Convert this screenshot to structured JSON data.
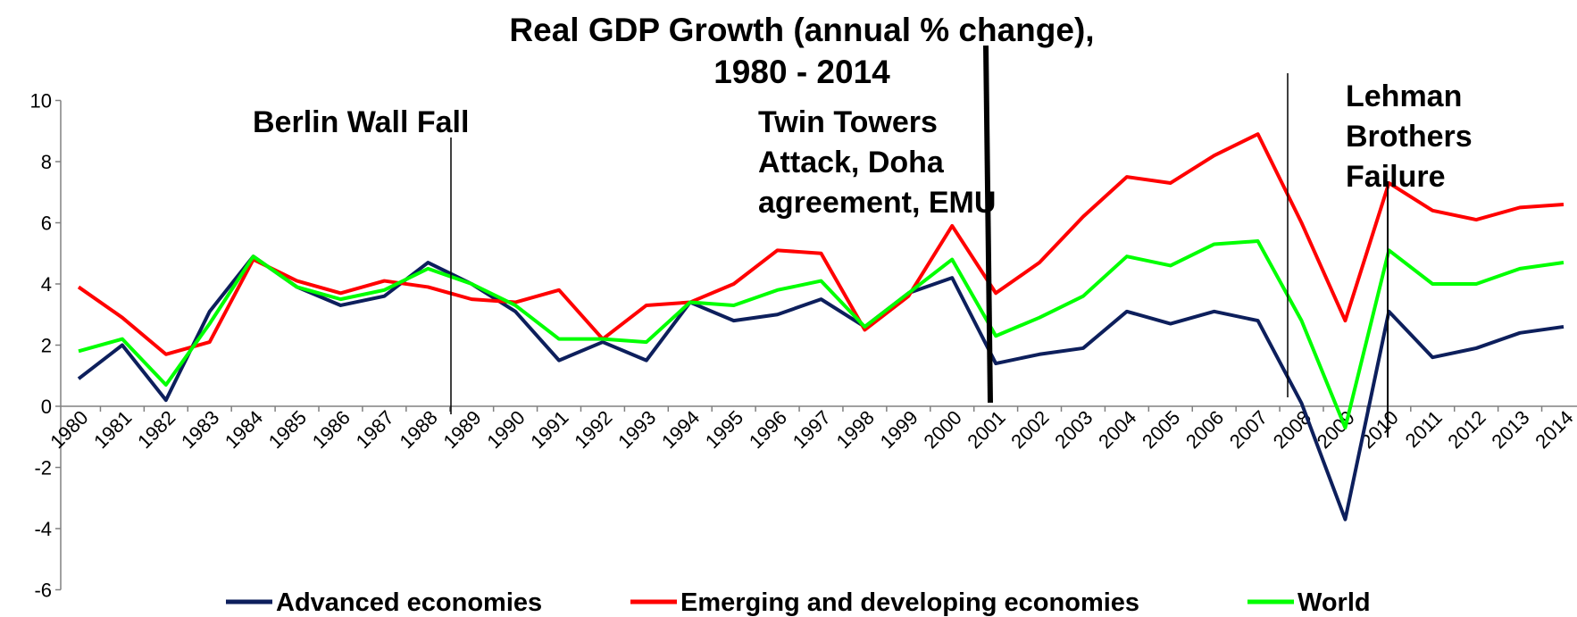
{
  "chart_data": {
    "type": "line",
    "title": [
      "Real GDP Growth (annual % change),",
      "1980 - 2014"
    ],
    "categories": [
      "1980",
      "1981",
      "1982",
      "1983",
      "1984",
      "1985",
      "1986",
      "1987",
      "1988",
      "1989",
      "1990",
      "1991",
      "1992",
      "1993",
      "1994",
      "1995",
      "1996",
      "1997",
      "1998",
      "1999",
      "2000",
      "2001",
      "2002",
      "2003",
      "2004",
      "2005",
      "2006",
      "2007",
      "2008",
      "2009",
      "2010",
      "2011",
      "2012",
      "2013",
      "2014"
    ],
    "series": [
      {
        "name": "Advanced economies",
        "color": "#0d1f5c",
        "values": [
          0.9,
          2.0,
          0.2,
          3.1,
          4.9,
          3.9,
          3.3,
          3.6,
          4.7,
          4.0,
          3.1,
          1.5,
          2.1,
          1.5,
          3.4,
          2.8,
          3.0,
          3.5,
          2.6,
          3.7,
          4.2,
          1.4,
          1.7,
          1.9,
          3.1,
          2.7,
          3.1,
          2.8,
          0.1,
          -3.7,
          3.1,
          1.6,
          1.9,
          2.4,
          2.6
        ]
      },
      {
        "name": "Emerging and developing economies",
        "color": "#ff0000",
        "values": [
          3.9,
          2.9,
          1.7,
          2.1,
          4.8,
          4.1,
          3.7,
          4.1,
          3.9,
          3.5,
          3.4,
          3.8,
          2.2,
          3.3,
          3.4,
          4.0,
          5.1,
          5.0,
          2.5,
          3.6,
          5.9,
          3.7,
          4.7,
          6.2,
          7.5,
          7.3,
          8.2,
          8.9,
          6.0,
          2.8,
          7.3,
          6.4,
          6.1,
          6.5,
          6.6
        ]
      },
      {
        "name": "World",
        "color": "#00ff00",
        "values": [
          1.8,
          2.2,
          0.7,
          2.7,
          4.9,
          3.9,
          3.5,
          3.8,
          4.5,
          4.0,
          3.3,
          2.2,
          2.2,
          2.1,
          3.4,
          3.3,
          3.8,
          4.1,
          2.6,
          3.7,
          4.8,
          2.3,
          2.9,
          3.6,
          4.9,
          4.6,
          5.3,
          5.4,
          2.8,
          -0.7,
          5.1,
          4.0,
          4.0,
          4.5,
          4.7
        ]
      }
    ],
    "ylim": [
      -6,
      10
    ],
    "yticks": [
      -6,
      -4,
      -2,
      0,
      2,
      4,
      6,
      8,
      10
    ],
    "annotations": [
      {
        "lines": [
          "Berlin Wall Fall"
        ]
      },
      {
        "lines": [
          "Twin Towers",
          "Attack, Doha",
          "agreement, EMU"
        ]
      },
      {
        "lines": [
          "Lehman",
          "Brothers",
          "Failure"
        ]
      }
    ],
    "legend": "bottom"
  }
}
